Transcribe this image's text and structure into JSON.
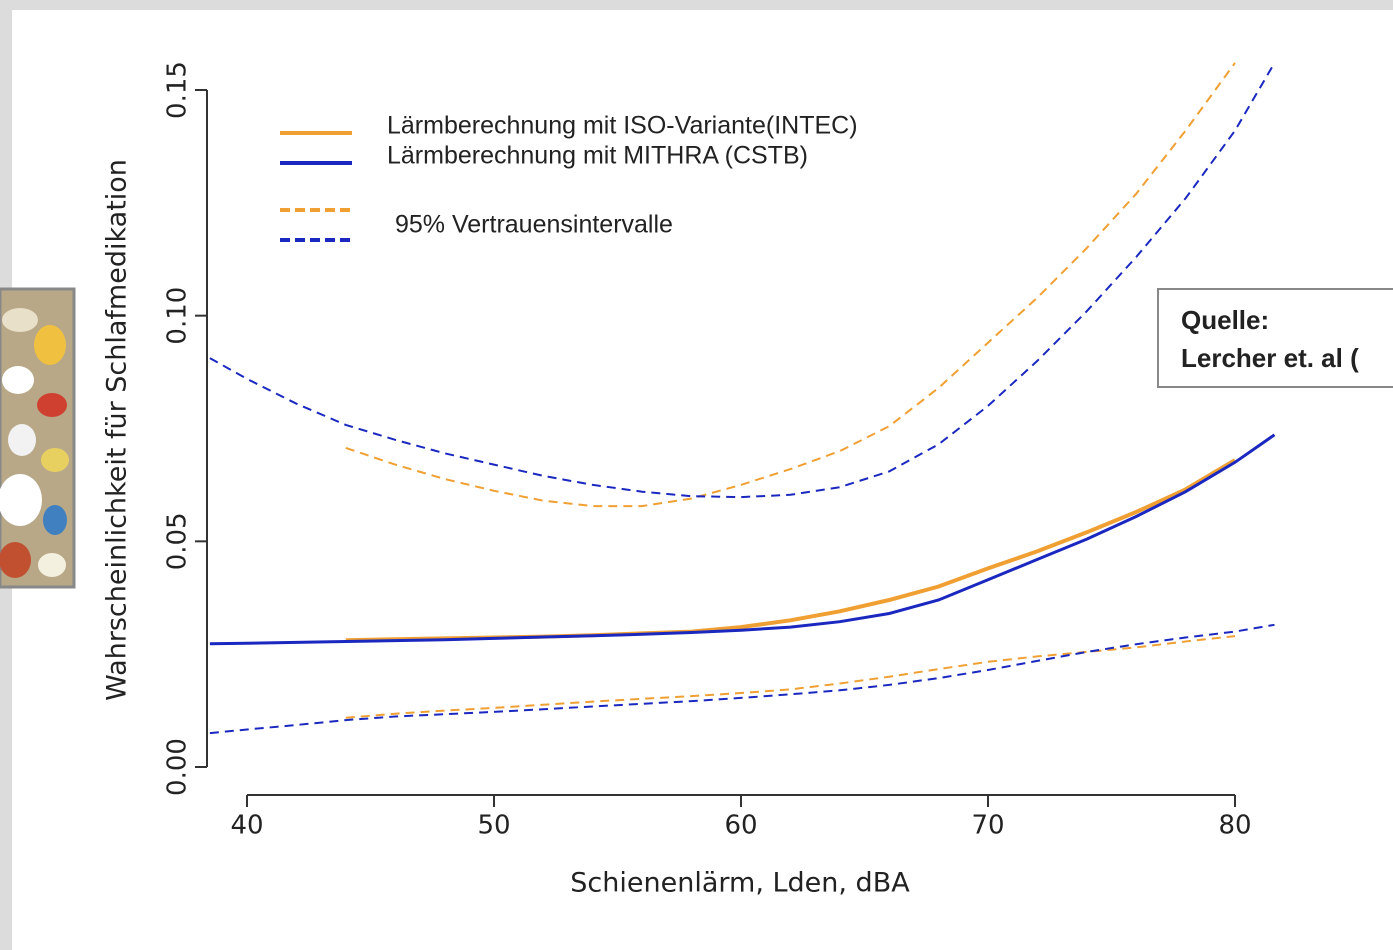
{
  "chart_data": {
    "type": "line",
    "x_label": "Schienenlärm, Lden, dBA",
    "y_label": "Wahrscheinlichkeit für Schlafmedikation",
    "x": [
      38.5,
      40,
      42,
      44,
      46,
      48,
      50,
      52,
      54,
      56,
      58,
      60,
      62,
      64,
      66,
      68,
      70,
      72,
      74,
      76,
      78,
      80,
      81.6
    ],
    "series": [
      {
        "name": "Lärmberechnung mit ISO-Variante(INTEC)",
        "color": "#f0a033",
        "style": "solid",
        "values": [
          null,
          null,
          null,
          0.0281,
          0.0283,
          0.0285,
          0.0287,
          0.0289,
          0.0292,
          0.0296,
          0.03,
          0.031,
          0.0325,
          0.0345,
          0.037,
          0.04,
          0.044,
          0.0478,
          0.052,
          0.0565,
          0.0615,
          0.068,
          null
        ]
      },
      {
        "name": "Lärmberechnung  mit MITHRA (CSTB)",
        "color": "#1a28c0",
        "style": "solid",
        "values": [
          0.0273,
          0.0274,
          0.0276,
          0.0278,
          0.028,
          0.0282,
          0.0285,
          0.0288,
          0.0291,
          0.0294,
          0.0298,
          0.0303,
          0.031,
          0.0322,
          0.034,
          0.037,
          0.0415,
          0.046,
          0.0505,
          0.0555,
          0.061,
          0.0675,
          0.0736
        ]
      },
      {
        "color": "#f0a033",
        "style": "dashed",
        "values": [
          null,
          null,
          null,
          0.0707,
          0.067,
          0.0638,
          0.0612,
          0.059,
          0.0578,
          0.0578,
          0.0595,
          0.0625,
          0.066,
          0.07,
          0.0755,
          0.084,
          0.094,
          0.104,
          0.115,
          0.127,
          0.141,
          0.156,
          null
        ]
      },
      {
        "color": "#1a28c0",
        "style": "dashed",
        "values": [
          0.0906,
          0.086,
          0.0805,
          0.0758,
          0.0725,
          0.0695,
          0.067,
          0.0645,
          0.0625,
          0.061,
          0.06,
          0.0598,
          0.0603,
          0.062,
          0.0655,
          0.0715,
          0.08,
          0.09,
          0.101,
          0.113,
          0.126,
          0.141,
          0.156
        ]
      },
      {
        "color": "#f0a033",
        "style": "dashed",
        "values": [
          null,
          null,
          null,
          0.0109,
          0.0118,
          0.0125,
          0.0131,
          0.0138,
          0.0145,
          0.0151,
          0.0157,
          0.0164,
          0.0172,
          0.0185,
          0.02,
          0.0217,
          0.0233,
          0.0245,
          0.0255,
          0.0265,
          0.0278,
          0.029,
          null
        ]
      },
      {
        "color": "#1a28c0",
        "style": "dashed",
        "values": [
          0.0075,
          0.0083,
          0.0093,
          0.0104,
          0.0112,
          0.0117,
          0.0122,
          0.0128,
          0.0134,
          0.014,
          0.0146,
          0.0153,
          0.0161,
          0.017,
          0.0182,
          0.0197,
          0.0215,
          0.0235,
          0.0255,
          0.0272,
          0.0287,
          0.03,
          0.0315
        ]
      }
    ],
    "ci_label": "95% Vertrauensintervalle",
    "xlim": [
      40,
      80
    ],
    "xticks": [
      40,
      50,
      60,
      70,
      80
    ],
    "ylim": [
      0,
      0.15
    ],
    "yticks": [
      {
        "value": 0,
        "label": "0.00"
      },
      {
        "value": 0.05,
        "label": "0.05"
      },
      {
        "value": 0.1,
        "label": "0.10"
      },
      {
        "value": 0.15,
        "label": "0.15"
      }
    ],
    "annotations": [
      "Quelle:",
      "Lercher et. al ("
    ]
  }
}
